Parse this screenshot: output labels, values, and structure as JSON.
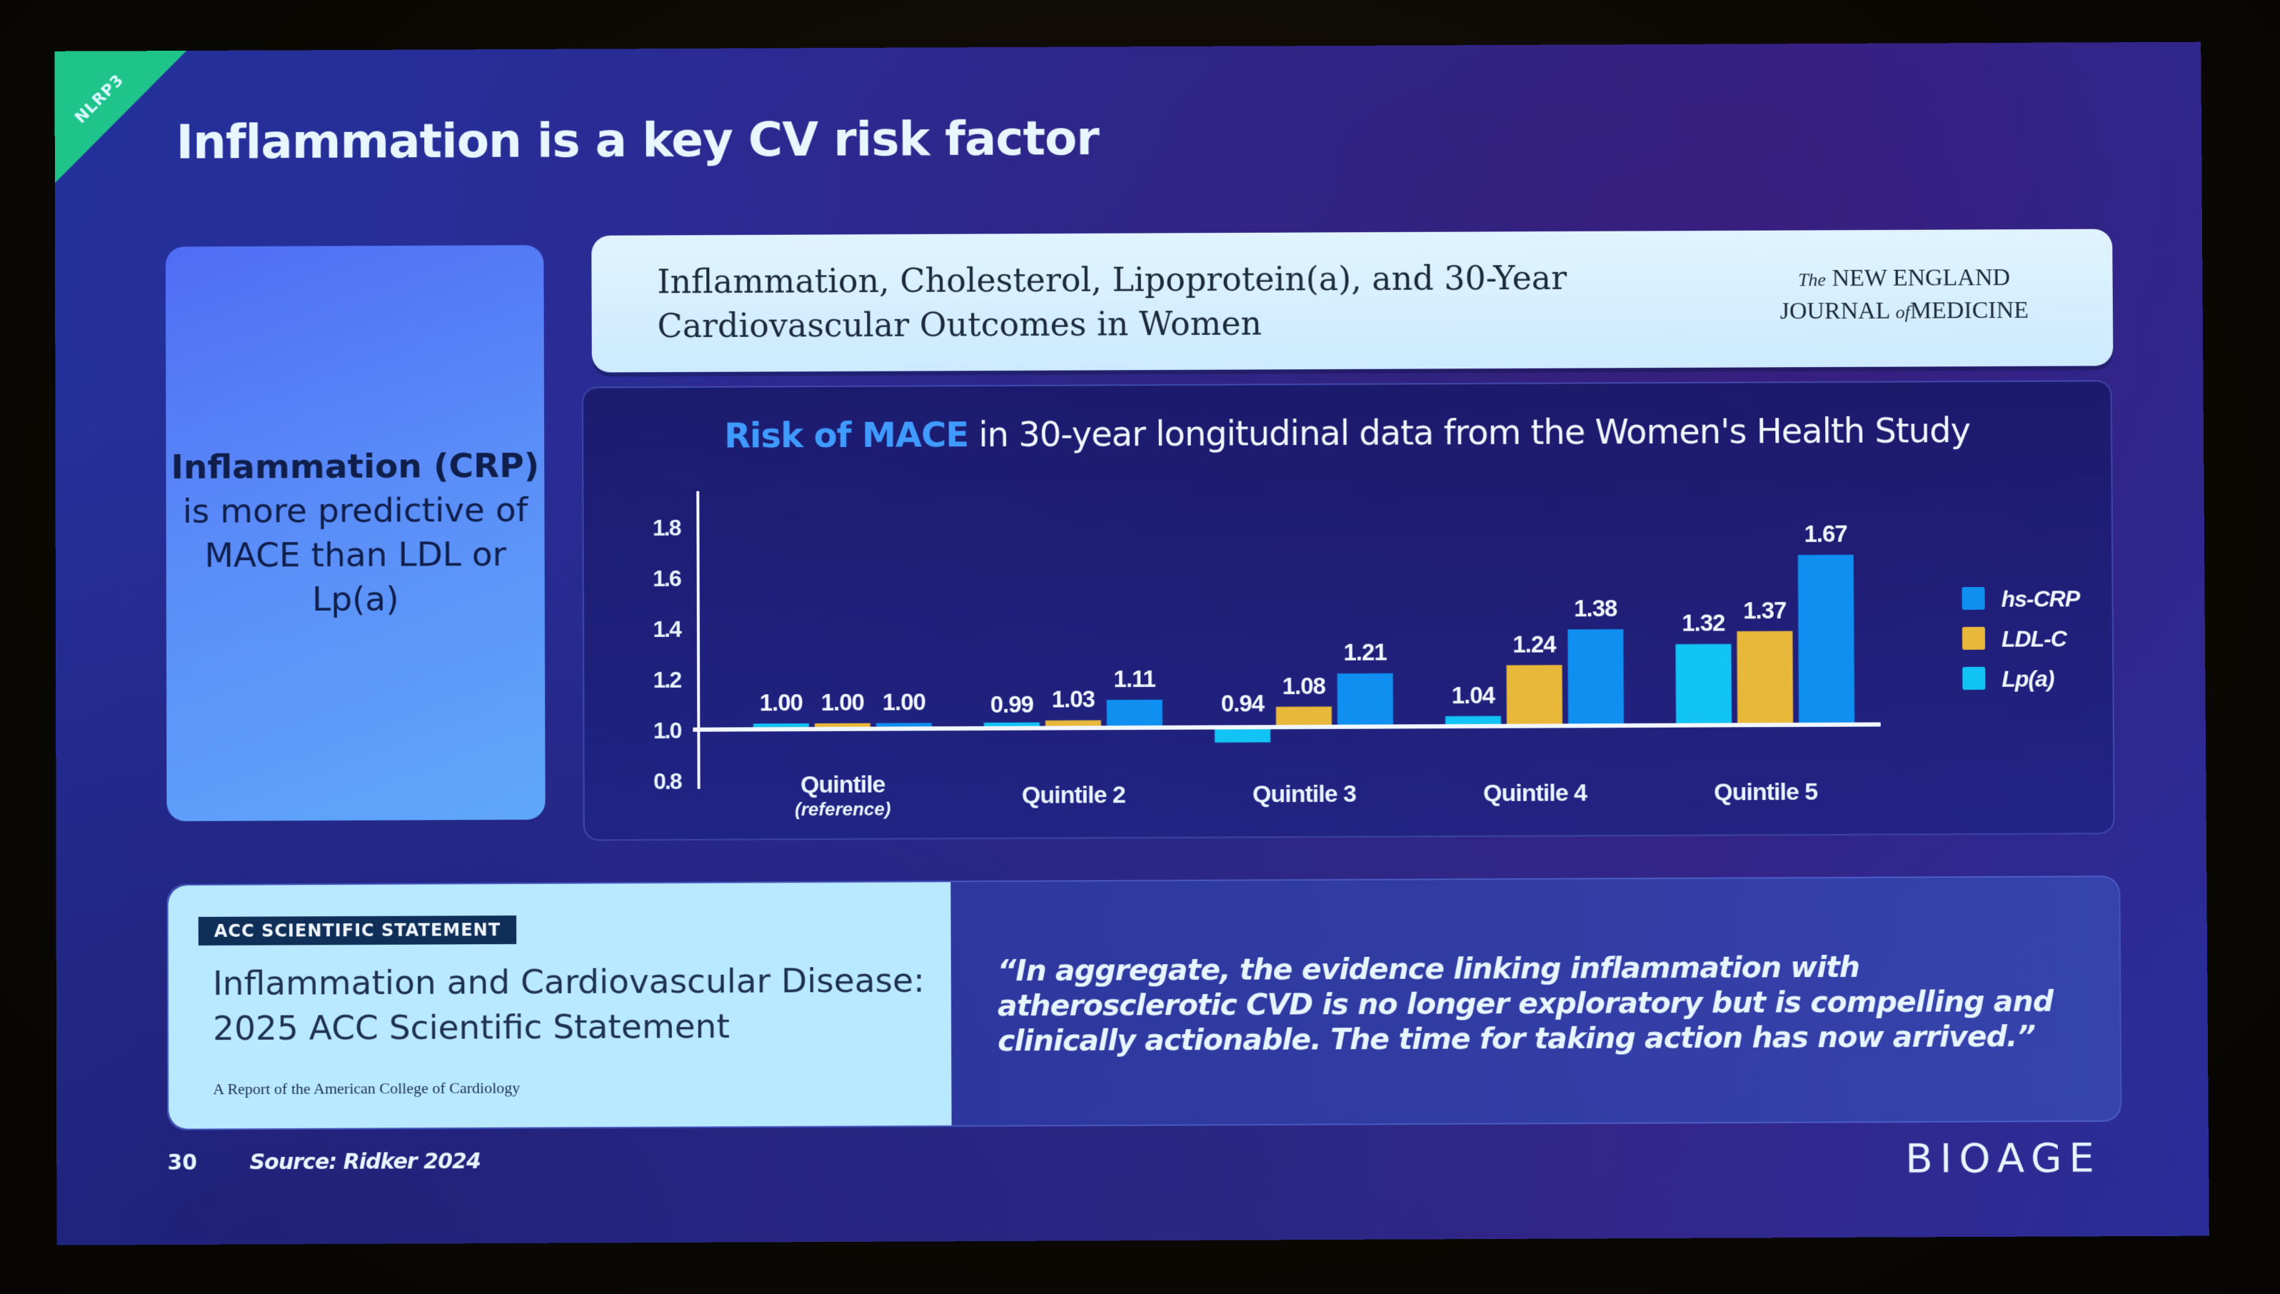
{
  "slide": {
    "tag": "NLRP3",
    "title": "Inflammation is a key CV risk factor",
    "page_number": "30",
    "source": "Source: Ridker 2024",
    "brand": "BIOAGE"
  },
  "left_card": {
    "bold_lead": "Inflammation (CRP)",
    "rest": " is more predictive of MACE than LDL or Lp(a)"
  },
  "nejm": {
    "title": "Inflammation, Cholesterol, Lipoprotein(a), and 30-Year Cardiovascular Outcomes in Women",
    "logo_line1_prefix": "The",
    "logo_line1": "NEW ENGLAND",
    "logo_line2_a": "JOURNAL",
    "logo_line2_of": "of",
    "logo_line2_b": "MEDICINE"
  },
  "acc": {
    "badge": "ACC SCIENTIFIC STATEMENT",
    "title": "Inflammation and Cardiovascular Disease: 2025 ACC Scientific Statement",
    "subtitle": "A Report of the American College of Cardiology",
    "quote": "“In aggregate, the evidence linking inflammation with atherosclerotic CVD is no longer exploratory but is compelling and clinically actionable. The time for taking action has now arrived.”"
  },
  "chart_data": {
    "type": "bar",
    "title_highlight": "Risk of MACE",
    "title_rest": " in 30-year longitudinal data from the Women's Health Study",
    "baseline": 1.0,
    "categories": [
      "Quintile",
      "Quintile 2",
      "Quintile 3",
      "Quintile 4",
      "Quintile 5"
    ],
    "category_sublabels": [
      "(reference)",
      "",
      "",
      "",
      ""
    ],
    "series": [
      {
        "name": "Lp(a)",
        "color": "#12c4f5",
        "values": [
          1.0,
          0.99,
          0.94,
          1.04,
          1.32
        ],
        "labels": [
          "1.00",
          "0.99",
          "0.94",
          "1.04",
          "1.32"
        ]
      },
      {
        "name": "LDL-C",
        "color": "#e8b83a",
        "values": [
          1.0,
          1.03,
          1.08,
          1.24,
          1.37
        ],
        "labels": [
          "1.00",
          "1.03",
          "1.08",
          "1.24",
          "1.37"
        ]
      },
      {
        "name": "hs-CRP",
        "color": "#0f8ff0",
        "values": [
          1.0,
          1.11,
          1.21,
          1.38,
          1.67
        ],
        "labels": [
          "1.00",
          "1.11",
          "1.21",
          "1.38",
          "1.67"
        ]
      }
    ],
    "legend_order": [
      "hs-CRP",
      "LDL-C",
      "Lp(a)"
    ],
    "legend_position": "right",
    "yticks": [
      0.8,
      1.0,
      1.2,
      1.4,
      1.6,
      1.8
    ],
    "ytick_labels": [
      "0.8",
      "1.0",
      "1.2",
      "1.4",
      "1.6",
      "1.8"
    ],
    "ylim": [
      0.8,
      1.9
    ],
    "xlabel": "",
    "ylabel": "",
    "grid": false
  }
}
